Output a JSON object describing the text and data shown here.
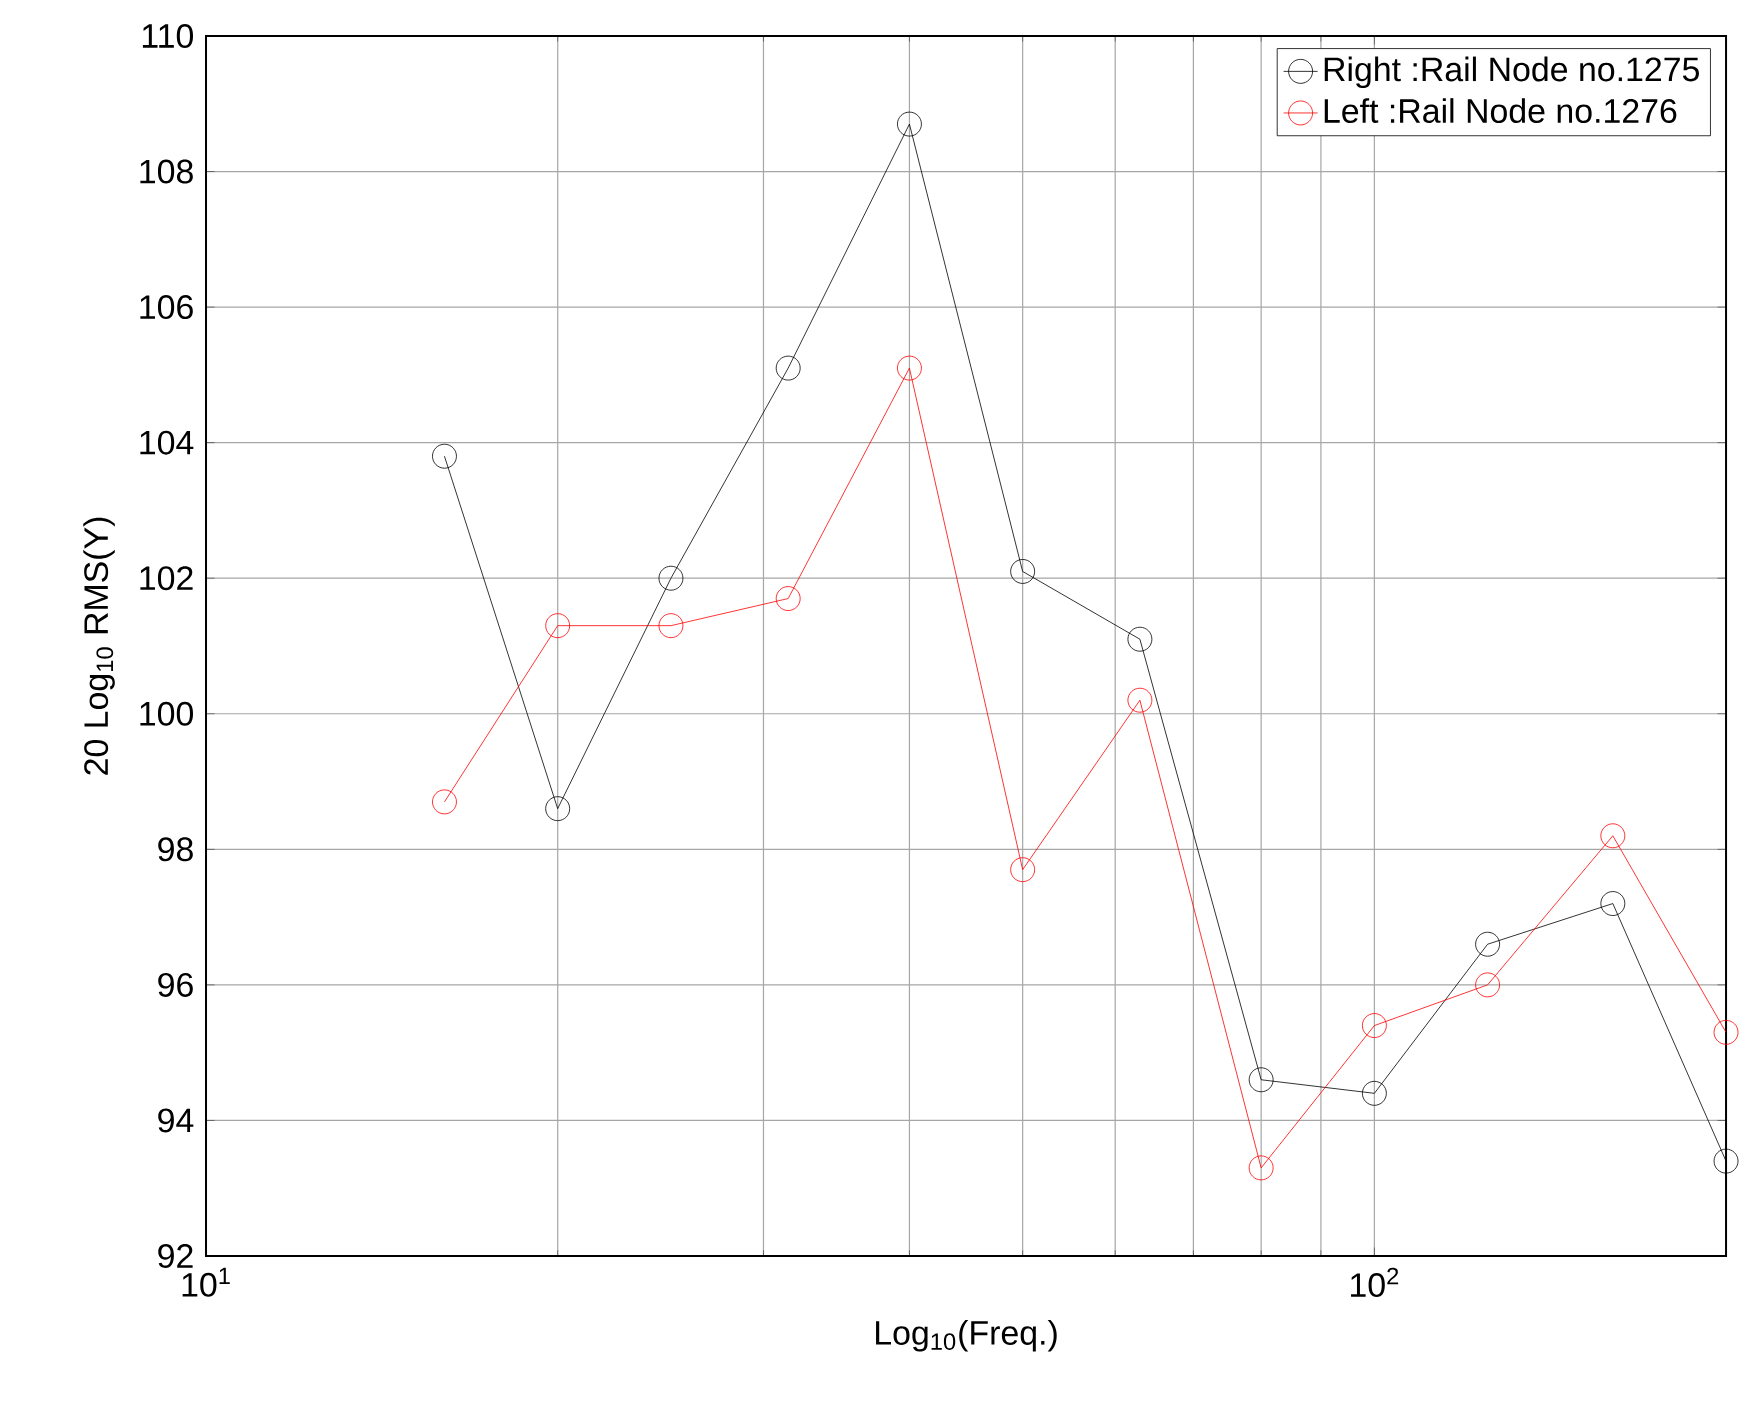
{
  "chart_data": {
    "type": "line",
    "xlabel": "Log$_{10}$(Freq.)",
    "ylabel": "20 Log$_{10}$ RMS(Y)",
    "x": [
      16,
      20,
      25,
      31.5,
      40,
      50,
      63,
      80,
      100,
      125,
      160,
      200
    ],
    "series": [
      {
        "name": "Right :Rail Node no.1275",
        "color": "#000000",
        "values": [
          103.8,
          98.6,
          102.0,
          105.1,
          108.7,
          102.1,
          101.1,
          94.6,
          94.4,
          96.6,
          97.2,
          93.4
        ]
      },
      {
        "name": "Left :Rail Node no.1276",
        "color": "#ff0000",
        "values": [
          98.7,
          101.3,
          101.3,
          101.7,
          105.1,
          97.7,
          100.2,
          93.3,
          95.4,
          96.0,
          98.2,
          95.3
        ]
      }
    ],
    "log": "x",
    "xlim": [
      10,
      200
    ],
    "ylim": [
      92,
      110
    ],
    "xticks": [
      {
        "value": 10,
        "label": "10$^{1}$"
      },
      {
        "value": 100,
        "label": "10$^{2}$"
      }
    ],
    "yticks": [
      92,
      94,
      96,
      98,
      100,
      102,
      104,
      106,
      108,
      110
    ],
    "grid": true,
    "legend": "top right",
    "marker": "circle",
    "line_style": "solid"
  }
}
